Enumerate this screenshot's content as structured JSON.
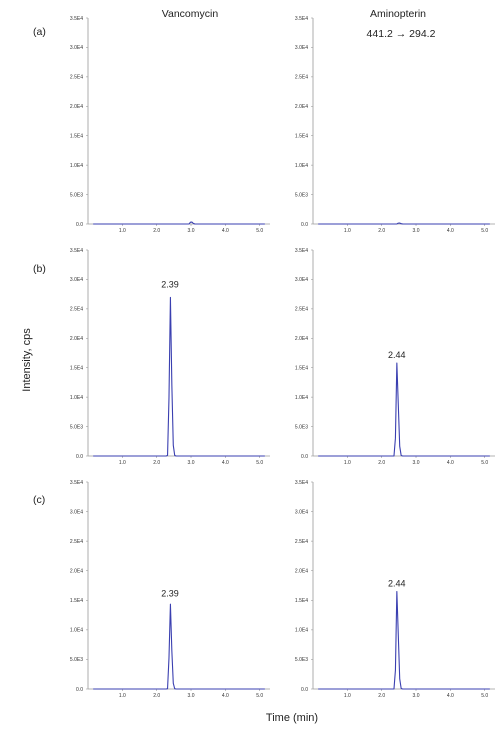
{
  "figure": {
    "column_titles": [
      "Vancomycin",
      "Aminopterin"
    ],
    "transition": "441.2 → 294.2",
    "row_labels": [
      "(a)",
      "(b)",
      "(c)"
    ],
    "ylabel": "Intensity, cps",
    "xlabel": "Time (min)",
    "trace_color": "#3a3fb0"
  },
  "chart_data": [
    {
      "type": "line",
      "panel": "a-vancomycin",
      "row_label": "(a)",
      "column": "Vancomycin",
      "yticks": [
        "0.0",
        "5.0E3",
        "1.0E4",
        "1.5E4",
        "2.0E4",
        "2.5E4",
        "3.0E4",
        "3.5E4"
      ],
      "xticks": [
        "1.0",
        "2.0",
        "3.0",
        "4.0",
        "5.0"
      ],
      "xlim": [
        0.0,
        5.3
      ],
      "ylim": [
        0,
        35000
      ],
      "peak": {
        "rt": 3.0,
        "height": 400,
        "label": ""
      }
    },
    {
      "type": "line",
      "panel": "a-aminopterin",
      "row_label": "(a)",
      "column": "Aminopterin",
      "yticks": [
        "0.0",
        "5.0E3",
        "1.0E4",
        "1.5E4",
        "2.0E4",
        "2.5E4",
        "3.0E4",
        "3.5E4"
      ],
      "xticks": [
        "1.0",
        "2.0",
        "3.0",
        "4.0",
        "5.0"
      ],
      "xlim": [
        0.0,
        5.3
      ],
      "ylim": [
        0,
        35000
      ],
      "peak": {
        "rt": 2.5,
        "height": 200,
        "label": ""
      }
    },
    {
      "type": "line",
      "panel": "b-vancomycin",
      "row_label": "(b)",
      "column": "Vancomycin",
      "yticks": [
        "0.0",
        "5.0E3",
        "1.0E4",
        "1.5E4",
        "2.0E4",
        "2.5E4",
        "3.0E4",
        "3.5E4"
      ],
      "xticks": [
        "1.0",
        "2.0",
        "3.0",
        "4.0",
        "5.0"
      ],
      "xlim": [
        0.0,
        5.3
      ],
      "ylim": [
        0,
        35000
      ],
      "peak": {
        "rt": 2.39,
        "height": 27800,
        "label": "2.39"
      }
    },
    {
      "type": "line",
      "panel": "b-aminopterin",
      "row_label": "(b)",
      "column": "Aminopterin",
      "yticks": [
        "0.0",
        "5.0E3",
        "1.0E4",
        "1.5E4",
        "2.0E4",
        "2.5E4",
        "3.0E4",
        "3.5E4"
      ],
      "xticks": [
        "1.0",
        "2.0",
        "3.0",
        "4.0",
        "5.0"
      ],
      "xlim": [
        0.0,
        5.3
      ],
      "ylim": [
        0,
        35000
      ],
      "peak": {
        "rt": 2.44,
        "height": 15800,
        "label": "2.44"
      }
    },
    {
      "type": "line",
      "panel": "c-vancomycin",
      "row_label": "(c)",
      "column": "Vancomycin",
      "yticks": [
        "0.0",
        "5.0E3",
        "1.0E4",
        "1.5E4",
        "2.0E4",
        "2.5E4",
        "3.0E4",
        "3.5E4"
      ],
      "xticks": [
        "1.0",
        "2.0",
        "3.0",
        "4.0",
        "5.0"
      ],
      "xlim": [
        0.0,
        5.3
      ],
      "ylim": [
        0,
        35000
      ],
      "peak": {
        "rt": 2.39,
        "height": 14800,
        "label": "2.39"
      }
    },
    {
      "type": "line",
      "panel": "c-aminopterin",
      "row_label": "(c)",
      "column": "Aminopterin",
      "yticks": [
        "0.0",
        "5.0E3",
        "1.0E4",
        "1.5E4",
        "2.0E4",
        "2.5E4",
        "3.0E4",
        "3.5E4"
      ],
      "xticks": [
        "1.0",
        "2.0",
        "3.0",
        "4.0",
        "5.0"
      ],
      "xlim": [
        0.0,
        5.3
      ],
      "ylim": [
        0,
        35000
      ],
      "peak": {
        "rt": 2.44,
        "height": 16500,
        "label": "2.44"
      }
    }
  ]
}
